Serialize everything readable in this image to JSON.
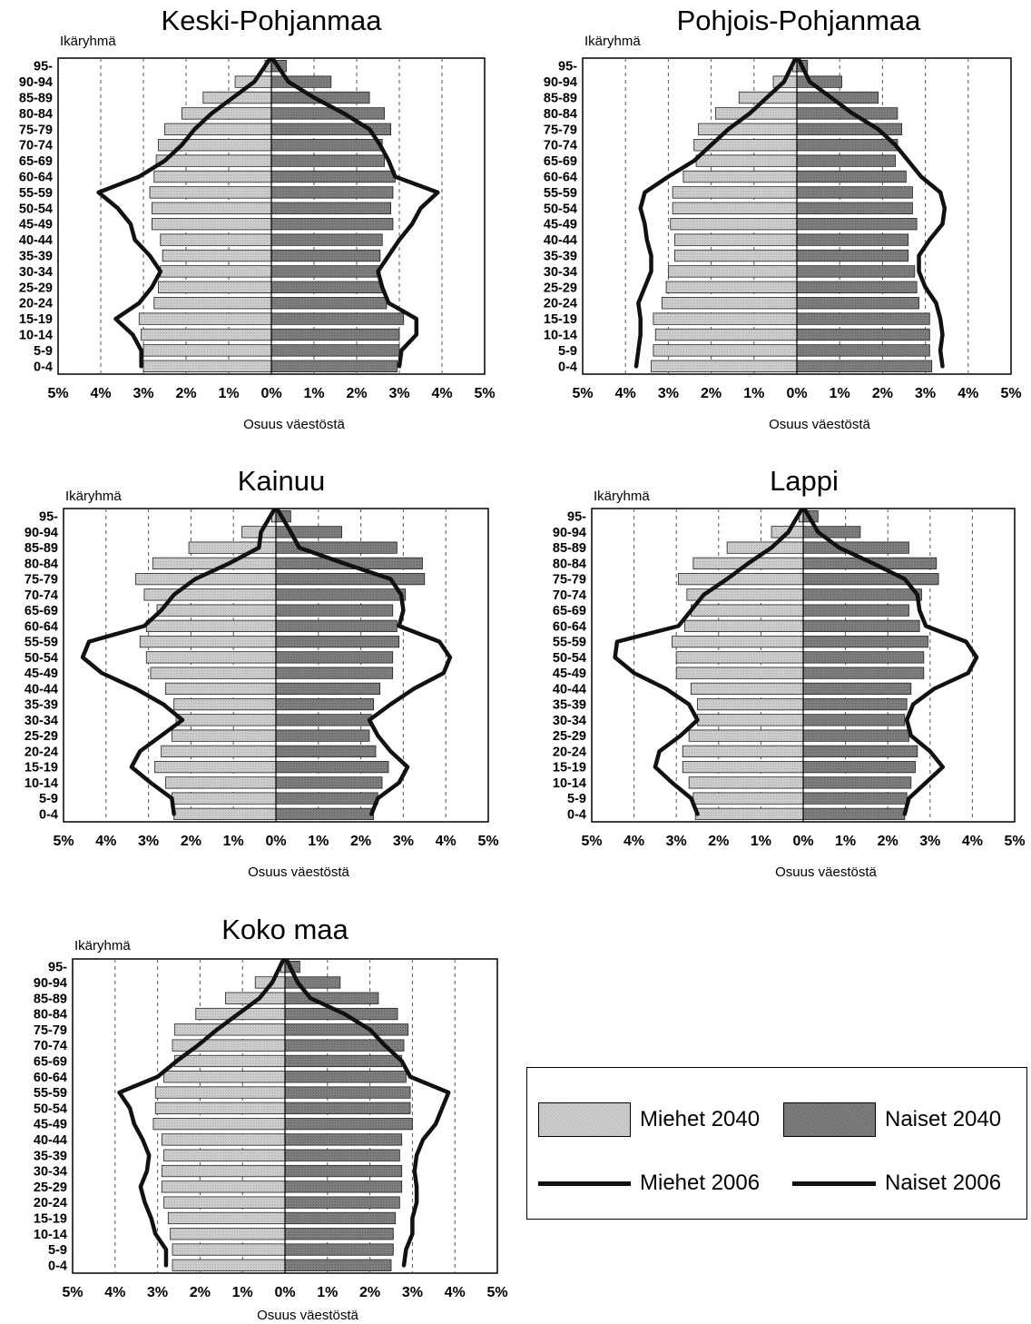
{
  "chart_data": [
    {
      "type": "bar",
      "title": "Keski-Pohjanmaa",
      "ylabel": "Ikäryhmä",
      "xlabel": "Osuus väestöstä",
      "categories": [
        "95-",
        "90-94",
        "85-89",
        "80-84",
        "75-79",
        "70-74",
        "65-69",
        "60-64",
        "55-59",
        "50-54",
        "45-49",
        "40-44",
        "35-39",
        "30-34",
        "25-29",
        "20-24",
        "15-19",
        "10-14",
        "5-9",
        "0-4"
      ],
      "xlim": [
        -5,
        5
      ],
      "xticks": [
        "5%",
        "4%",
        "3%",
        "2%",
        "1%",
        "0%",
        "1%",
        "2%",
        "3%",
        "4%",
        "5%"
      ],
      "series": [
        {
          "name": "Miehet 2040",
          "values": [
            0.15,
            0.85,
            1.6,
            2.1,
            2.5,
            2.65,
            2.7,
            2.75,
            2.85,
            2.8,
            2.8,
            2.6,
            2.55,
            2.6,
            2.65,
            2.75,
            3.1,
            3.05,
            3.0,
            3.0
          ]
        },
        {
          "name": "Naiset 2040",
          "values": [
            0.35,
            1.4,
            2.3,
            2.65,
            2.8,
            2.6,
            2.65,
            2.9,
            2.85,
            2.8,
            2.85,
            2.6,
            2.55,
            2.55,
            2.6,
            2.7,
            3.1,
            3.0,
            3.0,
            2.95
          ]
        },
        {
          "name": "Miehet 2006",
          "values": [
            0.05,
            0.4,
            0.9,
            1.4,
            1.8,
            2.1,
            2.5,
            3.1,
            4.05,
            3.6,
            3.3,
            3.2,
            2.85,
            2.6,
            2.8,
            3.1,
            3.65,
            3.25,
            3.05,
            3.05
          ]
        },
        {
          "name": "Naiset 2006",
          "values": [
            0.05,
            0.4,
            1.0,
            1.7,
            2.3,
            2.55,
            2.75,
            2.9,
            3.9,
            3.5,
            3.3,
            3.0,
            2.75,
            2.5,
            2.6,
            2.75,
            3.4,
            3.4,
            3.05,
            3.0
          ]
        }
      ]
    },
    {
      "type": "bar",
      "title": "Pohjois-Pohjanmaa",
      "ylabel": "Ikäryhmä",
      "xlabel": "Osuus väestöstä",
      "categories": [
        "95-",
        "90-94",
        "85-89",
        "80-84",
        "75-79",
        "70-74",
        "65-69",
        "60-64",
        "55-59",
        "50-54",
        "45-49",
        "40-44",
        "35-39",
        "30-34",
        "25-29",
        "20-24",
        "15-19",
        "10-14",
        "5-9",
        "0-4"
      ],
      "xlim": [
        -5,
        5
      ],
      "xticks": [
        "5%",
        "4%",
        "3%",
        "2%",
        "1%",
        "0%",
        "1%",
        "2%",
        "3%",
        "4%",
        "5%"
      ],
      "series": [
        {
          "name": "Miehet 2040",
          "values": [
            0.1,
            0.55,
            1.35,
            1.9,
            2.3,
            2.4,
            2.35,
            2.65,
            2.9,
            2.9,
            2.95,
            2.85,
            2.85,
            3.0,
            3.05,
            3.15,
            3.35,
            3.3,
            3.35,
            3.4
          ]
        },
        {
          "name": "Naiset 2040",
          "values": [
            0.25,
            1.05,
            1.9,
            2.35,
            2.45,
            2.35,
            2.3,
            2.55,
            2.7,
            2.7,
            2.8,
            2.6,
            2.6,
            2.75,
            2.8,
            2.85,
            3.1,
            3.1,
            3.1,
            3.15
          ]
        },
        {
          "name": "Miehet 2006",
          "values": [
            0.05,
            0.3,
            0.7,
            1.1,
            1.6,
            2.0,
            2.4,
            3.0,
            3.55,
            3.65,
            3.55,
            3.5,
            3.4,
            3.4,
            3.55,
            3.7,
            3.65,
            3.65,
            3.7,
            3.75
          ]
        },
        {
          "name": "Naiset 2006",
          "values": [
            0.05,
            0.3,
            0.8,
            1.3,
            1.9,
            2.3,
            2.6,
            2.9,
            3.35,
            3.45,
            3.4,
            3.1,
            2.85,
            2.85,
            3.0,
            3.25,
            3.35,
            3.4,
            3.35,
            3.4
          ]
        }
      ]
    },
    {
      "type": "bar",
      "title": "Kainuu",
      "ylabel": "Ikäryhmä",
      "xlabel": "Osuus väestöstä",
      "categories": [
        "95-",
        "90-94",
        "85-89",
        "80-84",
        "75-79",
        "70-74",
        "65-69",
        "60-64",
        "55-59",
        "50-54",
        "45-49",
        "40-44",
        "35-39",
        "30-34",
        "25-29",
        "20-24",
        "15-19",
        "10-14",
        "5-9",
        "0-4"
      ],
      "xlim": [
        -5,
        5
      ],
      "xticks": [
        "5%",
        "4%",
        "3%",
        "2%",
        "1%",
        "0%",
        "1%",
        "2%",
        "3%",
        "4%",
        "5%"
      ],
      "series": [
        {
          "name": "Miehet 2040",
          "values": [
            0.1,
            0.8,
            2.05,
            2.9,
            3.3,
            3.1,
            2.8,
            3.05,
            3.2,
            3.05,
            2.95,
            2.6,
            2.4,
            2.35,
            2.45,
            2.7,
            2.85,
            2.6,
            2.45,
            2.4
          ]
        },
        {
          "name": "Naiset 2040",
          "values": [
            0.35,
            1.55,
            2.85,
            3.45,
            3.5,
            3.05,
            2.75,
            2.85,
            2.9,
            2.75,
            2.75,
            2.45,
            2.3,
            2.25,
            2.2,
            2.35,
            2.65,
            2.5,
            2.4,
            2.3
          ]
        },
        {
          "name": "Miehet 2006",
          "values": [
            0.05,
            0.35,
            0.4,
            1.1,
            1.9,
            2.4,
            2.7,
            3.1,
            4.4,
            4.55,
            4.1,
            3.3,
            2.65,
            2.2,
            2.7,
            3.2,
            3.4,
            2.95,
            2.45,
            2.4
          ]
        },
        {
          "name": "Naiset 2006",
          "values": [
            0.05,
            0.35,
            0.55,
            1.6,
            2.7,
            2.95,
            3.0,
            2.9,
            3.85,
            4.1,
            3.95,
            3.25,
            2.7,
            2.2,
            2.4,
            2.7,
            3.1,
            2.9,
            2.4,
            2.25
          ]
        }
      ]
    },
    {
      "type": "bar",
      "title": "Lappi",
      "ylabel": "Ikäryhmä",
      "xlabel": "Osuus väestöstä",
      "categories": [
        "95-",
        "90-94",
        "85-89",
        "80-84",
        "75-79",
        "70-74",
        "65-69",
        "60-64",
        "55-59",
        "50-54",
        "45-49",
        "40-44",
        "35-39",
        "30-34",
        "25-29",
        "20-24",
        "15-19",
        "10-14",
        "5-9",
        "0-4"
      ],
      "xlim": [
        -5,
        5
      ],
      "xticks": [
        "5%",
        "4%",
        "3%",
        "2%",
        "1%",
        "0%",
        "1%",
        "2%",
        "3%",
        "4%",
        "5%"
      ],
      "series": [
        {
          "name": "Miehet 2040",
          "values": [
            0.1,
            0.75,
            1.8,
            2.6,
            2.95,
            2.75,
            2.65,
            2.8,
            3.1,
            3.0,
            3.0,
            2.65,
            2.5,
            2.5,
            2.7,
            2.85,
            2.85,
            2.7,
            2.6,
            2.55
          ]
        },
        {
          "name": "Naiset 2040",
          "values": [
            0.35,
            1.35,
            2.5,
            3.15,
            3.2,
            2.8,
            2.5,
            2.75,
            2.95,
            2.85,
            2.85,
            2.55,
            2.45,
            2.4,
            2.5,
            2.7,
            2.65,
            2.55,
            2.45,
            2.4
          ]
        },
        {
          "name": "Miehet 2006",
          "values": [
            0.05,
            0.35,
            0.75,
            1.3,
            1.8,
            2.35,
            2.65,
            2.95,
            4.4,
            4.45,
            4.0,
            3.25,
            2.7,
            2.5,
            2.9,
            3.4,
            3.5,
            3.1,
            2.65,
            2.5
          ]
        },
        {
          "name": "Naiset 2006",
          "values": [
            0.05,
            0.35,
            0.85,
            1.65,
            2.4,
            2.7,
            2.75,
            2.9,
            3.85,
            4.1,
            3.9,
            3.1,
            2.6,
            2.45,
            2.55,
            3.0,
            3.3,
            2.9,
            2.5,
            2.4
          ]
        }
      ]
    },
    {
      "type": "bar",
      "title": "Koko maa",
      "ylabel": "Ikäryhmä",
      "xlabel": "Osuus väestöstä",
      "categories": [
        "95-",
        "90-94",
        "85-89",
        "80-84",
        "75-79",
        "70-74",
        "65-69",
        "60-64",
        "55-59",
        "50-54",
        "45-49",
        "40-44",
        "35-39",
        "30-34",
        "25-29",
        "20-24",
        "15-19",
        "10-14",
        "5-9",
        "0-4"
      ],
      "xlim": [
        -5,
        5
      ],
      "xticks": [
        "5%",
        "4%",
        "3%",
        "2%",
        "1%",
        "0%",
        "1%",
        "2%",
        "3%",
        "4%",
        "5%"
      ],
      "series": [
        {
          "name": "Miehet 2040",
          "values": [
            0.1,
            0.7,
            1.4,
            2.1,
            2.6,
            2.65,
            2.6,
            2.85,
            3.05,
            3.05,
            3.1,
            2.9,
            2.85,
            2.9,
            2.9,
            2.85,
            2.75,
            2.7,
            2.65,
            2.65
          ]
        },
        {
          "name": "Naiset 2040",
          "values": [
            0.35,
            1.3,
            2.2,
            2.65,
            2.9,
            2.8,
            2.75,
            2.85,
            2.95,
            2.95,
            3.0,
            2.75,
            2.7,
            2.75,
            2.75,
            2.7,
            2.6,
            2.55,
            2.55,
            2.5
          ]
        },
        {
          "name": "Miehet 2006",
          "values": [
            0.05,
            0.3,
            0.6,
            1.1,
            1.6,
            2.05,
            2.55,
            3.0,
            3.9,
            3.65,
            3.55,
            3.35,
            3.2,
            3.25,
            3.4,
            3.3,
            3.15,
            3.05,
            2.8,
            2.8
          ]
        },
        {
          "name": "Naiset 2006",
          "values": [
            0.05,
            0.3,
            0.6,
            1.4,
            2.0,
            2.35,
            2.75,
            2.95,
            3.85,
            3.7,
            3.55,
            3.25,
            3.1,
            3.05,
            3.1,
            3.1,
            3.0,
            3.0,
            2.85,
            2.8
          ]
        }
      ]
    }
  ],
  "legend": {
    "men_2040": "Miehet 2040",
    "women_2040": "Naiset 2040",
    "men_2006": "Miehet 2006",
    "women_2006": "Naiset 2006"
  },
  "colors": {
    "men_2040": "#cdcdcd",
    "women_2040": "#7d7d7d",
    "line_2006": "#111111"
  }
}
